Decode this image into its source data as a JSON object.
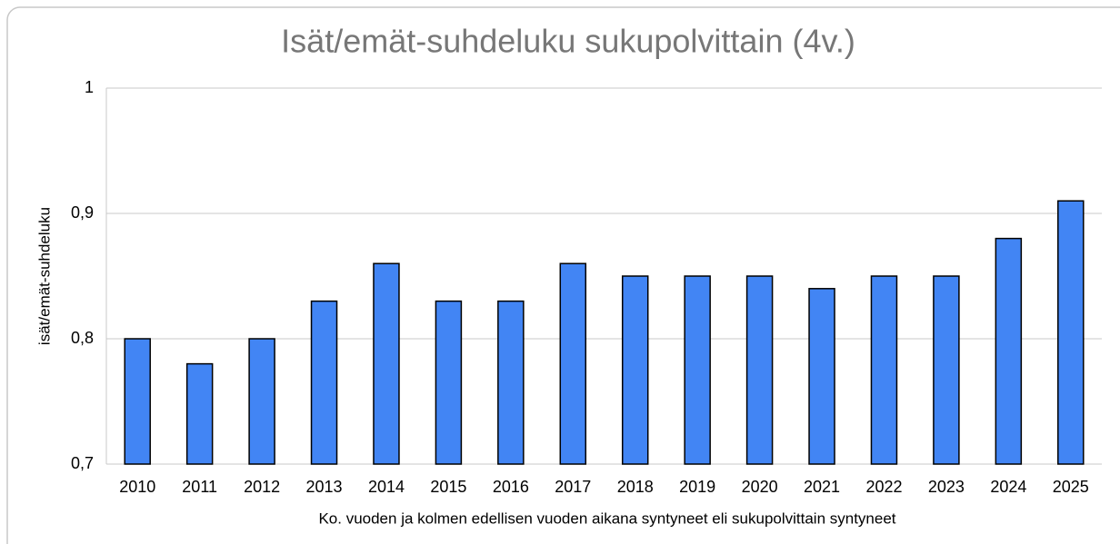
{
  "chart_data": {
    "type": "bar",
    "title": "Isät/emät-suhdeluku sukupolvittain (4v.)",
    "y_label": "isät/emät-suhdeluku",
    "x_label": "Ko. vuoden ja kolmen edellisen vuoden aikana syntyneet eli sukupolvittain syntyneet",
    "categories": [
      "2010",
      "2011",
      "2012",
      "2013",
      "2014",
      "2015",
      "2016",
      "2017",
      "2018",
      "2019",
      "2020",
      "2021",
      "2022",
      "2023",
      "2024",
      "2025"
    ],
    "values": [
      0.8,
      0.78,
      0.8,
      0.83,
      0.86,
      0.83,
      0.83,
      0.86,
      0.85,
      0.85,
      0.85,
      0.84,
      0.85,
      0.85,
      0.88,
      0.91
    ],
    "color": "#4285f4",
    "ylim": [
      0.7,
      1
    ],
    "yticks": [
      {
        "value": 0.7,
        "label": "0,7"
      },
      {
        "value": 0.8,
        "label": "0,8"
      },
      {
        "value": 0.9,
        "label": "0,9"
      },
      1
    ],
    "grid": true
  }
}
